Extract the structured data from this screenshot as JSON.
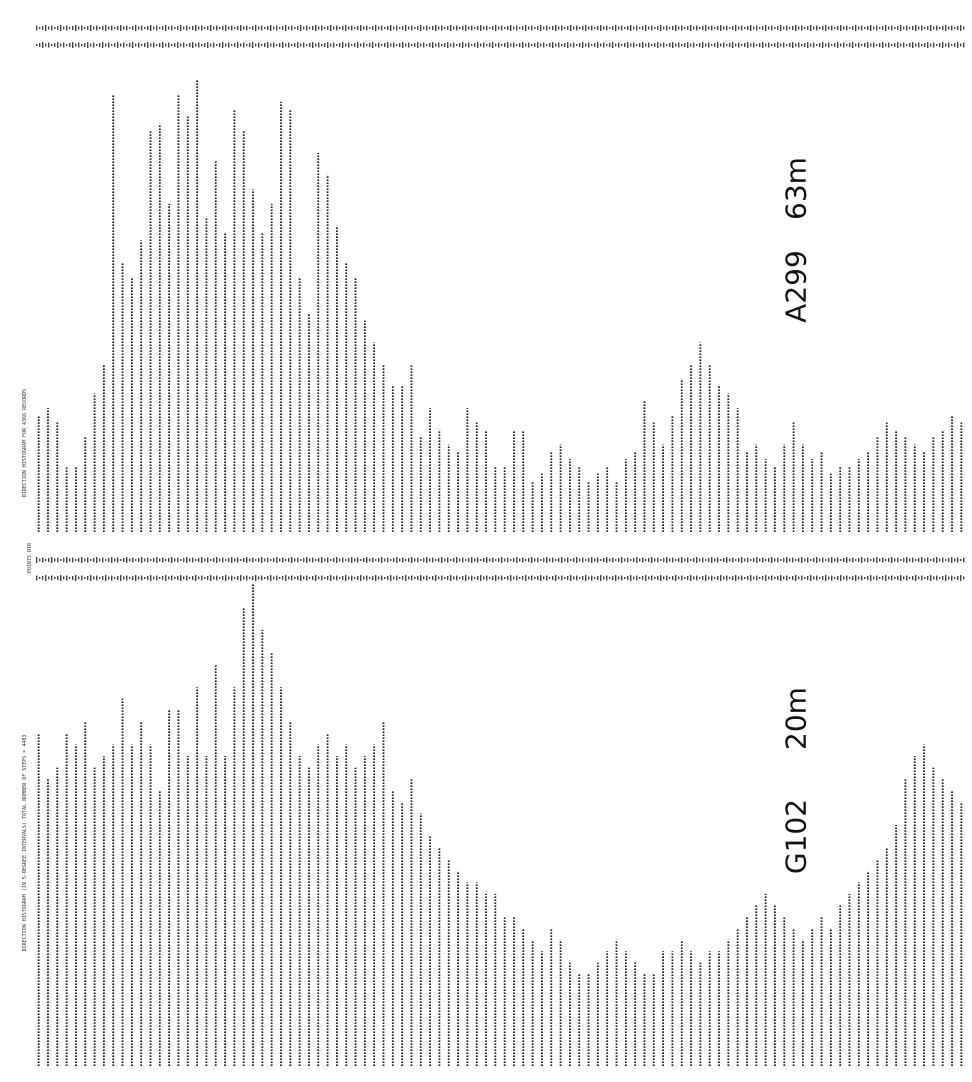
{
  "header_line_top": "DIRECTION HISTOGRAM FOR 4366 RECORDS",
  "header_line_bottom": "DIRECTION HISTOGRAM (IN 5-DEGREE INTERVALS)      TOTAL NUMBER OF STEPS = 4403",
  "points_label": "POINTS  DIR",
  "charts": [
    {
      "id": "A299",
      "station": "A299",
      "depth": "63m",
      "type": "bar",
      "orientation": "rotated-printout",
      "values": [
        16,
        17,
        15,
        9,
        9,
        13,
        19,
        23,
        60,
        37,
        35,
        40,
        55,
        56,
        45,
        60,
        57,
        62,
        43,
        51,
        41,
        58,
        55,
        47,
        41,
        45,
        59,
        58,
        35,
        30,
        52,
        49,
        42,
        37,
        35,
        29,
        26,
        23,
        20,
        20,
        23,
        13,
        17,
        14,
        12,
        11,
        17,
        15,
        14,
        9,
        9,
        14,
        14,
        7,
        8,
        11,
        12,
        10,
        9,
        7,
        8,
        9,
        7,
        10,
        11,
        18,
        15,
        12,
        16,
        21,
        23,
        26,
        23,
        20,
        19,
        17,
        11,
        12,
        10,
        9,
        12,
        15,
        12,
        10,
        11,
        8,
        9,
        9,
        10,
        11,
        13,
        15,
        14,
        13,
        12,
        11,
        13,
        14,
        16,
        15
      ]
    },
    {
      "id": "G102",
      "station": "G102",
      "depth": "20m",
      "type": "bar",
      "orientation": "rotated-printout",
      "values": [
        29,
        25,
        26,
        29,
        28,
        30,
        26,
        27,
        28,
        32,
        28,
        30,
        28,
        24,
        31,
        31,
        27,
        33,
        27,
        35,
        27,
        33,
        40,
        42,
        38,
        36,
        33,
        30,
        27,
        26,
        28,
        29,
        27,
        28,
        26,
        27,
        28,
        30,
        24,
        23,
        25,
        22,
        20,
        19,
        18,
        17,
        16,
        16,
        15,
        15,
        13,
        13,
        12,
        11,
        10,
        12,
        11,
        9,
        8,
        8,
        9,
        10,
        11,
        10,
        9,
        8,
        8,
        10,
        10,
        11,
        10,
        9,
        10,
        10,
        11,
        12,
        13,
        14,
        15,
        14,
        13,
        12,
        11,
        12,
        13,
        12,
        14,
        15,
        16,
        17,
        18,
        19,
        21,
        25,
        27,
        28,
        26,
        25,
        24,
        23
      ]
    }
  ]
}
